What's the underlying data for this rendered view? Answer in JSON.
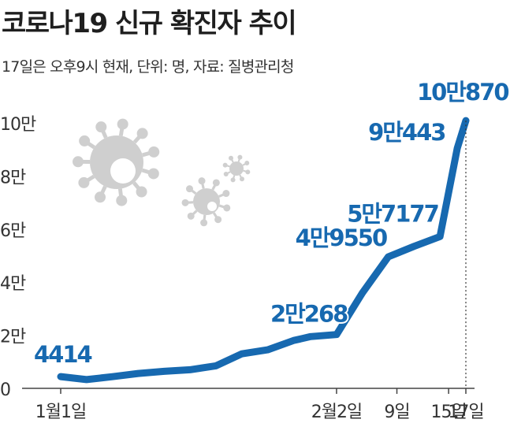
{
  "header": {
    "title": "코로나19 신규 확진자 추이",
    "subtitle": "17일은 오후9시 현재, 단위: 명, 자료: 질병관리청"
  },
  "colors": {
    "line": "#1769b0",
    "label": "#1769b0",
    "axis": "#444444",
    "virus": "#cfcfcf"
  },
  "icons": [
    "virus-icon-large",
    "virus-icon-small",
    "virus-icon-tiny"
  ],
  "chart_data": {
    "type": "line",
    "title": "코로나19 신규 확진자 추이",
    "subtitle": "17일은 오후9시 현재, 단위: 명, 자료: 질병관리청",
    "ylim": [
      0,
      100000
    ],
    "y_ticks": [
      {
        "value": 0,
        "label": "0"
      },
      {
        "value": 20000,
        "label": "2만"
      },
      {
        "value": 40000,
        "label": "4만"
      },
      {
        "value": 60000,
        "label": "6만"
      },
      {
        "value": 80000,
        "label": "8만"
      },
      {
        "value": 100000,
        "label": "10만"
      }
    ],
    "x_ticks": [
      {
        "day": 1,
        "label": "1월1일"
      },
      {
        "day": 33,
        "label": "2월2일"
      },
      {
        "day": 40,
        "label": "9일"
      },
      {
        "day": 46,
        "label": "15일"
      },
      {
        "day": 48,
        "label": "17일"
      }
    ],
    "series": [
      {
        "values": [
          {
            "day": 1,
            "value": 4414
          },
          {
            "day": 4,
            "value": 3300
          },
          {
            "day": 7,
            "value": 4400
          },
          {
            "day": 10,
            "value": 5600
          },
          {
            "day": 13,
            "value": 6400
          },
          {
            "day": 16,
            "value": 7000
          },
          {
            "day": 19,
            "value": 8500
          },
          {
            "day": 22,
            "value": 13000
          },
          {
            "day": 25,
            "value": 14500
          },
          {
            "day": 28,
            "value": 18000
          },
          {
            "day": 30,
            "value": 19500
          },
          {
            "day": 33,
            "value": 20268
          },
          {
            "day": 36,
            "value": 36000
          },
          {
            "day": 39,
            "value": 49550
          },
          {
            "day": 42,
            "value": 53500
          },
          {
            "day": 45,
            "value": 57177
          },
          {
            "day": 47,
            "value": 90443
          },
          {
            "day": 48,
            "value": 100870
          }
        ]
      }
    ],
    "annotations": [
      {
        "day": 1,
        "value": 4414,
        "label": "4414"
      },
      {
        "day": 33,
        "value": 20268,
        "label": "2만268"
      },
      {
        "day": 39,
        "value": 49550,
        "label": "4만9550"
      },
      {
        "day": 45,
        "value": 57177,
        "label": "5만7177"
      },
      {
        "day": 47,
        "value": 90443,
        "label": "9만443"
      },
      {
        "day": 48,
        "value": 100870,
        "label": "10만870"
      }
    ]
  }
}
